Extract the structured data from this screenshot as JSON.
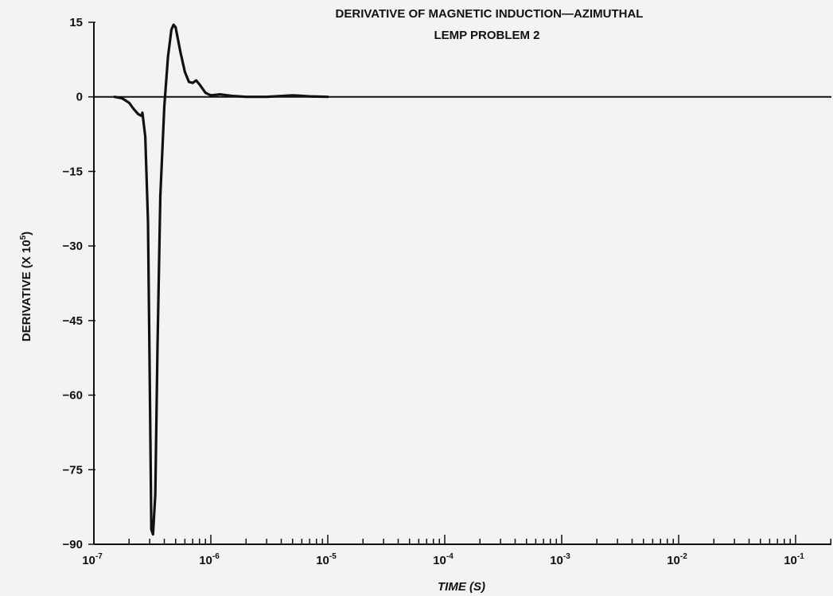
{
  "chart_data": {
    "type": "line",
    "title": "DERIVATIVE OF MAGNETIC INDUCTION—AZIMUTHAL",
    "subtitle": "LEMP PROBLEM 2",
    "xlabel": "TIME (S)",
    "ylabel_main": "DERIVATIVE (X 10",
    "ylabel_exp": "5",
    "ylabel_close": ")",
    "x_scale": "log",
    "xlim": [
      1e-07,
      0.3
    ],
    "ylim": [
      -90,
      15
    ],
    "grid": false,
    "x_ticks": [
      {
        "value": 1e-07,
        "base": "10",
        "exp": "-7"
      },
      {
        "value": 1e-06,
        "base": "10",
        "exp": "-6"
      },
      {
        "value": 1e-05,
        "base": "10",
        "exp": "-5"
      },
      {
        "value": 0.0001,
        "base": "10",
        "exp": "-4"
      },
      {
        "value": 0.001,
        "base": "10",
        "exp": "-3"
      },
      {
        "value": 0.01,
        "base": "10",
        "exp": "-2"
      },
      {
        "value": 0.1,
        "base": "10",
        "exp": "-1"
      }
    ],
    "y_ticks": [
      {
        "value": 15,
        "label": "15"
      },
      {
        "value": 0,
        "label": "0"
      },
      {
        "value": -15,
        "label": "−15"
      },
      {
        "value": -30,
        "label": "−30"
      },
      {
        "value": -45,
        "label": "−45"
      },
      {
        "value": -60,
        "label": "−60"
      },
      {
        "value": -75,
        "label": "−75"
      },
      {
        "value": -90,
        "label": "−90"
      }
    ],
    "series": [
      {
        "x": [
          1.5e-07,
          1.75e-07,
          2e-07,
          2.2e-07,
          2.4e-07,
          2.55e-07,
          2.6e-07,
          2.75e-07,
          2.9e-07,
          3e-07,
          3.1e-07,
          3.2e-07,
          3.35e-07,
          3.5e-07,
          3.7e-07,
          4e-07,
          4.3e-07,
          4.6e-07,
          4.8e-07,
          5e-07,
          5.5e-07,
          6e-07,
          6.5e-07,
          7e-07,
          7.5e-07,
          8e-07,
          9e-07,
          1e-06,
          1.2e-06,
          1.5e-06,
          2e-06,
          3e-06,
          5e-06,
          7e-06,
          1e-05
        ],
        "y": [
          0,
          -0.3,
          -1.2,
          -2.5,
          -3.5,
          -3.8,
          -3.2,
          -8,
          -25,
          -55,
          -87,
          -88,
          -80,
          -50,
          -20,
          -2,
          8,
          13.5,
          14.5,
          14,
          9,
          5,
          3,
          2.8,
          3.3,
          2.5,
          0.8,
          0.3,
          0.5,
          0.2,
          0,
          0,
          0.3,
          0.1,
          0
        ]
      }
    ]
  }
}
